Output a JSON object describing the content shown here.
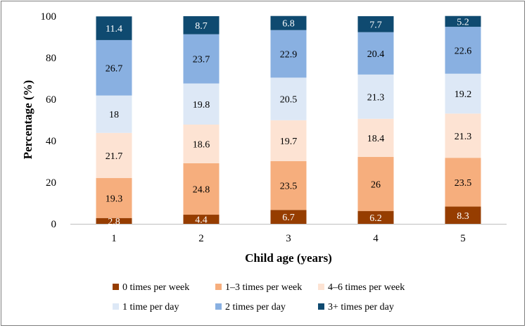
{
  "chart_data": {
    "type": "bar",
    "stacked": true,
    "title": "",
    "xlabel": "Child age (years)",
    "ylabel": "Percentage (%)",
    "ylim": [
      0,
      100
    ],
    "yticks": [
      "0",
      "20",
      "40",
      "60",
      "80",
      "100"
    ],
    "categories": [
      "1",
      "2",
      "3",
      "4",
      "5"
    ],
    "legend_position": "bottom",
    "series": [
      {
        "name": "0 times per week",
        "color": "#963d00",
        "label_color": "#ffffff",
        "values": [
          2.8,
          4.4,
          6.7,
          6.2,
          8.3
        ],
        "labels": [
          "2.8",
          "4.4",
          "6.7",
          "6.2",
          "8.3"
        ]
      },
      {
        "name": "1–3 times per week",
        "color": "#f6ae7d",
        "label_color": "#000000",
        "values": [
          19.3,
          24.8,
          23.5,
          26,
          23.5
        ],
        "labels": [
          "19.3",
          "24.8",
          "23.5",
          "26",
          "23.5"
        ]
      },
      {
        "name": "4–6 times per week",
        "color": "#fde3d3",
        "label_color": "#000000",
        "values": [
          21.7,
          18.6,
          19.7,
          18.4,
          21.3
        ],
        "labels": [
          "21.7",
          "18.6",
          "19.7",
          "18.4",
          "21.3"
        ]
      },
      {
        "name": "1 time per day",
        "color": "#dde8f6",
        "label_color": "#000000",
        "values": [
          18,
          19.8,
          20.5,
          21.3,
          19.2
        ],
        "labels": [
          "18",
          "19.8",
          "20.5",
          "21.3",
          "19.2"
        ]
      },
      {
        "name": "2 times per day",
        "color": "#89b0e1",
        "label_color": "#000000",
        "values": [
          26.7,
          23.7,
          22.9,
          20.4,
          22.6
        ],
        "labels": [
          "26.7",
          "23.7",
          "22.9",
          "20.4",
          "22.6"
        ]
      },
      {
        "name": "3+ times per day",
        "color": "#0f4a70",
        "label_color": "#ffffff",
        "values": [
          11.4,
          8.7,
          6.8,
          7.7,
          5.2
        ],
        "labels": [
          "11.4",
          "8.7",
          "6.8",
          "7.7",
          "5.2"
        ]
      }
    ]
  }
}
